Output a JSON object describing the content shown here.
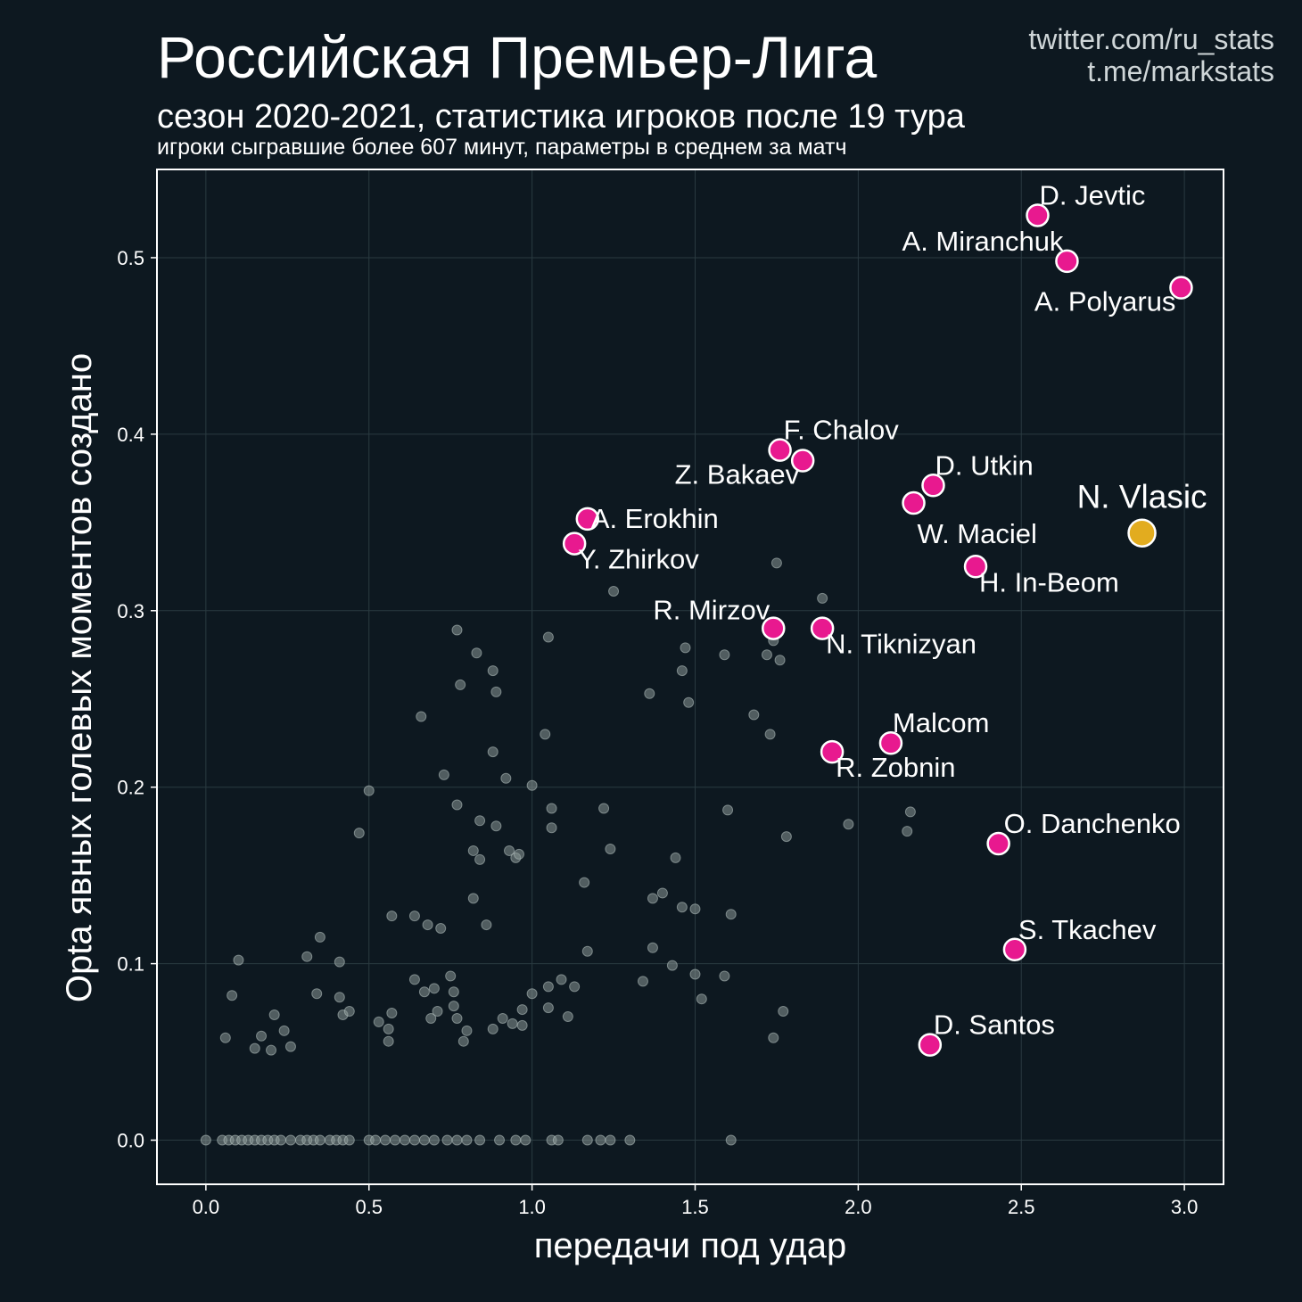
{
  "header": {
    "title": "Российская Премьер-Лига",
    "subtitle": "сезон 2020-2021, статистика игроков после 19 тура",
    "note": "игроки сыгравшие более 607 минут, параметры в среднем за матч",
    "credit_twitter": "twitter.com/ru_stats",
    "credit_telegram": "t.me/markstats"
  },
  "colors": {
    "background": "#0d1820",
    "highlight": "#e8198f",
    "featured": "#e2ac1f",
    "background_points": "#8a9896"
  },
  "chart_data": {
    "type": "scatter",
    "xlabel": "передачи под удар",
    "ylabel": "Opta явных голевых моментов создано",
    "xlim": [
      -0.15,
      3.12
    ],
    "ylim": [
      -0.025,
      0.55
    ],
    "xticks": [
      "0.0",
      "0.5",
      "1.0",
      "1.5",
      "2.0",
      "2.5",
      "3.0"
    ],
    "yticks": [
      "0.0",
      "0.1",
      "0.2",
      "0.3",
      "0.4",
      "0.5"
    ],
    "grid": true,
    "highlighted": [
      {
        "label": "D. Jevtic",
        "x": 2.55,
        "y": 0.524
      },
      {
        "label": "A. Miranchuk",
        "x": 2.64,
        "y": 0.498
      },
      {
        "label": "A. Polyarus",
        "x": 2.99,
        "y": 0.483
      },
      {
        "label": "F. Chalov",
        "x": 1.76,
        "y": 0.391
      },
      {
        "label": "Z. Bakaev",
        "x": 1.83,
        "y": 0.385
      },
      {
        "label": "D. Utkin",
        "x": 2.23,
        "y": 0.371
      },
      {
        "label": "W. Maciel",
        "x": 2.17,
        "y": 0.361
      },
      {
        "label": "A. Erokhin",
        "x": 1.17,
        "y": 0.352
      },
      {
        "label": "Y. Zhirkov",
        "x": 1.13,
        "y": 0.338
      },
      {
        "label": "H. In-Beom",
        "x": 2.36,
        "y": 0.325
      },
      {
        "label": "R. Mirzov",
        "x": 1.74,
        "y": 0.29
      },
      {
        "label": "N. Tiknizyan",
        "x": 1.89,
        "y": 0.29
      },
      {
        "label": "Malcom",
        "x": 2.1,
        "y": 0.225
      },
      {
        "label": "R. Zobnin",
        "x": 1.92,
        "y": 0.22
      },
      {
        "label": "O. Danchenko",
        "x": 2.43,
        "y": 0.168
      },
      {
        "label": "S. Tkachev",
        "x": 2.48,
        "y": 0.108
      },
      {
        "label": "D. Santos",
        "x": 2.22,
        "y": 0.054
      }
    ],
    "featured": [
      {
        "label": "N. Vlasic",
        "x": 2.87,
        "y": 0.344
      }
    ],
    "others": [
      [
        0.0,
        0
      ],
      [
        0.05,
        0
      ],
      [
        0.07,
        0
      ],
      [
        0.09,
        0
      ],
      [
        0.11,
        0
      ],
      [
        0.13,
        0
      ],
      [
        0.15,
        0
      ],
      [
        0.17,
        0
      ],
      [
        0.19,
        0
      ],
      [
        0.21,
        0
      ],
      [
        0.23,
        0
      ],
      [
        0.26,
        0
      ],
      [
        0.29,
        0
      ],
      [
        0.31,
        0
      ],
      [
        0.33,
        0
      ],
      [
        0.35,
        0
      ],
      [
        0.38,
        0
      ],
      [
        0.4,
        0
      ],
      [
        0.42,
        0
      ],
      [
        0.44,
        0
      ],
      [
        0.5,
        0
      ],
      [
        0.52,
        0
      ],
      [
        0.55,
        0
      ],
      [
        0.58,
        0
      ],
      [
        0.61,
        0
      ],
      [
        0.64,
        0
      ],
      [
        0.67,
        0
      ],
      [
        0.7,
        0
      ],
      [
        0.74,
        0
      ],
      [
        0.77,
        0
      ],
      [
        0.8,
        0
      ],
      [
        0.84,
        0
      ],
      [
        0.9,
        0
      ],
      [
        0.95,
        0
      ],
      [
        0.98,
        0
      ],
      [
        1.06,
        0
      ],
      [
        1.08,
        0
      ],
      [
        1.17,
        0
      ],
      [
        1.21,
        0
      ],
      [
        1.24,
        0
      ],
      [
        1.3,
        0
      ],
      [
        1.61,
        0
      ],
      [
        0.06,
        0.058
      ],
      [
        0.08,
        0.082
      ],
      [
        0.1,
        0.102
      ],
      [
        0.15,
        0.052
      ],
      [
        0.17,
        0.059
      ],
      [
        0.2,
        0.051
      ],
      [
        0.21,
        0.071
      ],
      [
        0.24,
        0.062
      ],
      [
        0.26,
        0.053
      ],
      [
        0.31,
        0.104
      ],
      [
        0.34,
        0.083
      ],
      [
        0.35,
        0.115
      ],
      [
        0.41,
        0.101
      ],
      [
        0.41,
        0.081
      ],
      [
        0.42,
        0.071
      ],
      [
        0.44,
        0.073
      ],
      [
        0.47,
        0.174
      ],
      [
        0.5,
        0.198
      ],
      [
        0.53,
        0.067
      ],
      [
        0.56,
        0.056
      ],
      [
        0.56,
        0.063
      ],
      [
        0.57,
        0.127
      ],
      [
        0.57,
        0.072
      ],
      [
        0.64,
        0.127
      ],
      [
        0.64,
        0.091
      ],
      [
        0.66,
        0.24
      ],
      [
        0.67,
        0.084
      ],
      [
        0.68,
        0.122
      ],
      [
        0.69,
        0.069
      ],
      [
        0.7,
        0.086
      ],
      [
        0.71,
        0.073
      ],
      [
        0.72,
        0.12
      ],
      [
        0.73,
        0.207
      ],
      [
        0.75,
        0.093
      ],
      [
        0.76,
        0.084
      ],
      [
        0.76,
        0.076
      ],
      [
        0.77,
        0.069
      ],
      [
        0.77,
        0.19
      ],
      [
        0.77,
        0.289
      ],
      [
        0.78,
        0.258
      ],
      [
        0.79,
        0.056
      ],
      [
        0.8,
        0.062
      ],
      [
        0.82,
        0.164
      ],
      [
        0.82,
        0.137
      ],
      [
        0.83,
        0.276
      ],
      [
        0.84,
        0.181
      ],
      [
        0.84,
        0.159
      ],
      [
        0.86,
        0.122
      ],
      [
        0.88,
        0.063
      ],
      [
        0.88,
        0.22
      ],
      [
        0.88,
        0.266
      ],
      [
        0.89,
        0.254
      ],
      [
        0.89,
        0.178
      ],
      [
        0.91,
        0.069
      ],
      [
        0.92,
        0.205
      ],
      [
        0.93,
        0.164
      ],
      [
        0.94,
        0.066
      ],
      [
        0.95,
        0.16
      ],
      [
        0.96,
        0.162
      ],
      [
        0.97,
        0.074
      ],
      [
        0.97,
        0.065
      ],
      [
        1.0,
        0.083
      ],
      [
        1.0,
        0.201
      ],
      [
        1.04,
        0.23
      ],
      [
        1.05,
        0.285
      ],
      [
        1.05,
        0.075
      ],
      [
        1.05,
        0.087
      ],
      [
        1.06,
        0.188
      ],
      [
        1.06,
        0.177
      ],
      [
        1.09,
        0.091
      ],
      [
        1.11,
        0.07
      ],
      [
        1.13,
        0.087
      ],
      [
        1.16,
        0.146
      ],
      [
        1.17,
        0.107
      ],
      [
        1.22,
        0.188
      ],
      [
        1.24,
        0.165
      ],
      [
        1.25,
        0.311
      ],
      [
        1.34,
        0.09
      ],
      [
        1.36,
        0.253
      ],
      [
        1.37,
        0.109
      ],
      [
        1.37,
        0.137
      ],
      [
        1.4,
        0.14
      ],
      [
        1.43,
        0.099
      ],
      [
        1.44,
        0.16
      ],
      [
        1.46,
        0.132
      ],
      [
        1.46,
        0.266
      ],
      [
        1.47,
        0.279
      ],
      [
        1.48,
        0.248
      ],
      [
        1.5,
        0.094
      ],
      [
        1.5,
        0.131
      ],
      [
        1.52,
        0.08
      ],
      [
        1.59,
        0.093
      ],
      [
        1.59,
        0.275
      ],
      [
        1.6,
        0.187
      ],
      [
        1.61,
        0.128
      ],
      [
        1.68,
        0.241
      ],
      [
        1.72,
        0.275
      ],
      [
        1.73,
        0.23
      ],
      [
        1.74,
        0.058
      ],
      [
        1.74,
        0.283
      ],
      [
        1.75,
        0.327
      ],
      [
        1.76,
        0.272
      ],
      [
        1.77,
        0.073
      ],
      [
        1.78,
        0.172
      ],
      [
        1.89,
        0.307
      ],
      [
        1.97,
        0.179
      ],
      [
        2.15,
        0.175
      ],
      [
        2.16,
        0.186
      ]
    ]
  }
}
